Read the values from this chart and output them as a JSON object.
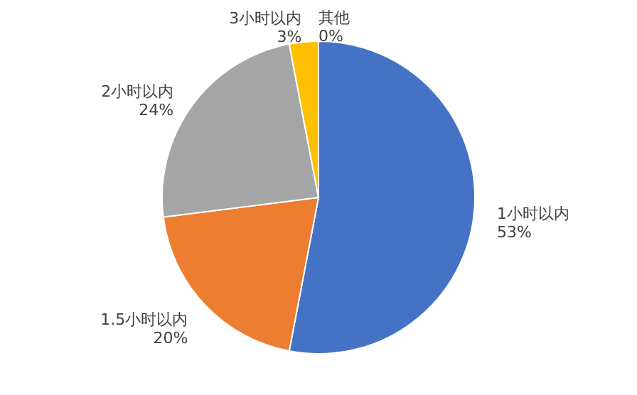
{
  "chart_data": {
    "type": "pie",
    "categories": [
      "1小时以内",
      "1.5小时以内",
      "2小时以内",
      "3小时以内",
      "其他"
    ],
    "values": [
      53,
      20,
      24,
      3,
      0
    ],
    "value_labels": [
      "53%",
      "20%",
      "24%",
      "3%",
      "0%"
    ],
    "colors": [
      "#4472c4",
      "#ed7d31",
      "#a5a5a5",
      "#ffc000",
      "#5b9bd5"
    ]
  }
}
